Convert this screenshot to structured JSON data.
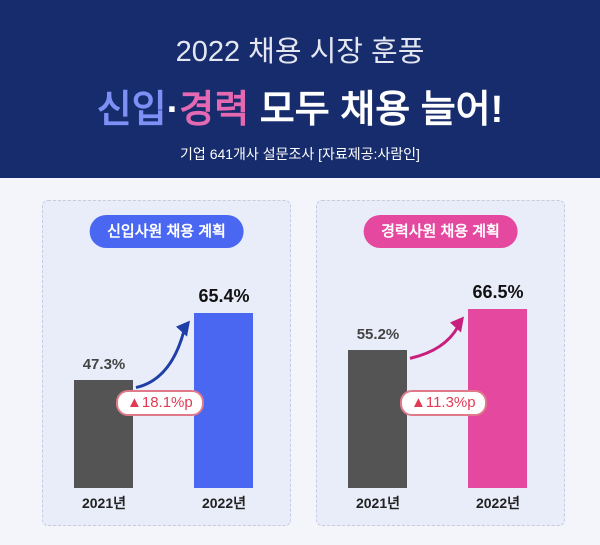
{
  "header": {
    "title_line1": "2022 채용 시장 훈풍",
    "title_part_a": "신입",
    "title_sep": "·",
    "title_part_b": "경력",
    "title_rest": " 모두 채용 늘어!",
    "subtitle": "기업 641개사 설문조사 [자료제공:사람인]"
  },
  "colors": {
    "header_bg": "#172c6c",
    "new_hire": "#4a67f2",
    "experienced": "#e4489f",
    "prior_year": "#545454",
    "badge": "#e23a55"
  },
  "chart_data": [
    {
      "type": "bar",
      "title": "신입사원 채용 계획",
      "categories": [
        "2021년",
        "2022년"
      ],
      "values": [
        47.3,
        65.4
      ],
      "value_labels": [
        "47.3%",
        "65.4%"
      ],
      "change_label": "▲18.1%p",
      "unit": "%",
      "bar_colors": [
        "#545454",
        "#4a67f2"
      ],
      "arrow_color": "#1f3ea8"
    },
    {
      "type": "bar",
      "title": "경력사원 채용 계획",
      "categories": [
        "2021년",
        "2022년"
      ],
      "values": [
        55.2,
        66.5
      ],
      "value_labels": [
        "55.2%",
        "66.5%"
      ],
      "change_label": "▲11.3%p",
      "unit": "%",
      "bar_colors": [
        "#545454",
        "#e4489f"
      ],
      "arrow_color": "#c81e7e"
    }
  ]
}
